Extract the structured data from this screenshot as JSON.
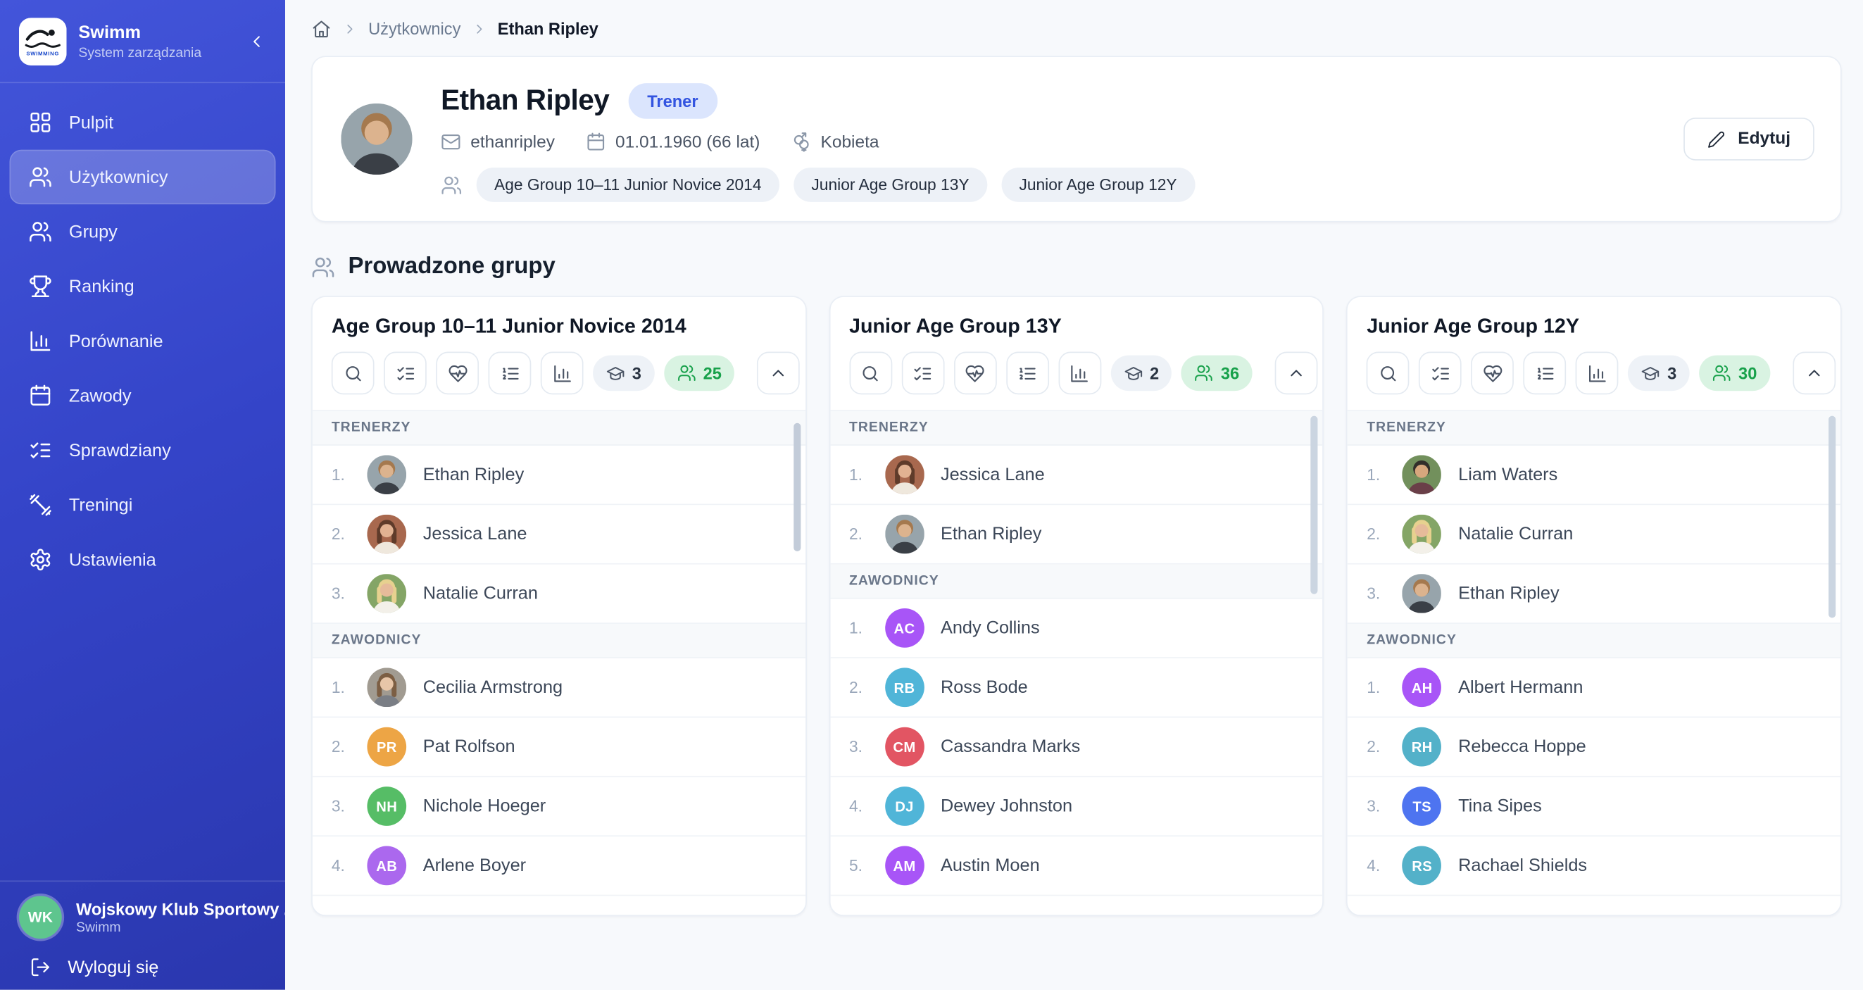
{
  "colors": {
    "sidebar_blue": "#3444c8",
    "active_nav_overlay": "rgba(255,255,255,0.22)",
    "role_badge_bg": "#dbe5fd",
    "role_badge_text": "#3354e0",
    "athletes_badge_bg": "#d9f3e2",
    "athletes_badge_text": "#18a14b",
    "club_avatar": "#5ec58e"
  },
  "sidebar": {
    "brand": {
      "title": "Swimm",
      "subtitle": "System zarządzania",
      "logo_icon": "swimmer-logo"
    },
    "nav": [
      {
        "label": "Pulpit",
        "icon": "dashboard",
        "active": false
      },
      {
        "label": "Użytkownicy",
        "icon": "users",
        "active": true
      },
      {
        "label": "Grupy",
        "icon": "users",
        "active": false
      },
      {
        "label": "Ranking",
        "icon": "trophy",
        "active": false
      },
      {
        "label": "Porównanie",
        "icon": "bar-chart",
        "active": false
      },
      {
        "label": "Zawody",
        "icon": "calendar",
        "active": false
      },
      {
        "label": "Sprawdziany",
        "icon": "list-checks",
        "active": false
      },
      {
        "label": "Treningi",
        "icon": "dumbbell",
        "active": false
      },
      {
        "label": "Ustawienia",
        "icon": "settings",
        "active": false
      }
    ],
    "club": {
      "initials": "WK",
      "name": "Wojskowy Klub Sportowy ...",
      "subtitle": "Swimm",
      "avatar_color": "#5ec58e"
    },
    "logout_label": "Wyloguj się"
  },
  "breadcrumb": {
    "items": [
      "Użytkownicy",
      "Ethan Ripley"
    ]
  },
  "profile": {
    "name": "Ethan Ripley",
    "role_badge": "Trener",
    "username": "ethanripley",
    "birth": "01.01.1960 (66 lat)",
    "gender": "Kobieta",
    "groups": [
      "Age Group 10–11 Junior Novice 2014",
      "Junior Age Group 13Y",
      "Junior Age Group 12Y"
    ],
    "edit_label": "Edytuj",
    "avatar": {
      "type": "photo",
      "variant": "man1"
    }
  },
  "section": {
    "title": "Prowadzone grupy"
  },
  "cards_toolbar": {
    "icons": [
      "search",
      "list-checks",
      "heart-pulse",
      "list-ordered",
      "bar-chart"
    ]
  },
  "cards": [
    {
      "title": "Age Group 10–11 Junior Novice 2014",
      "coaches_count": "3",
      "athletes_count": "25",
      "sections": [
        {
          "label": "TRENERZY",
          "members": [
            {
              "name": "Ethan Ripley",
              "avatar": {
                "type": "photo",
                "variant": "man1"
              }
            },
            {
              "name": "Jessica Lane",
              "avatar": {
                "type": "photo",
                "variant": "woman1"
              }
            },
            {
              "name": "Natalie Curran",
              "avatar": {
                "type": "photo",
                "variant": "woman2"
              }
            }
          ]
        },
        {
          "label": "ZAWODNICY",
          "members": [
            {
              "name": "Cecilia Armstrong",
              "avatar": {
                "type": "photo",
                "variant": "child1"
              }
            },
            {
              "name": "Pat Rolfson",
              "avatar": {
                "type": "initials",
                "text": "PR",
                "color": "#eda545"
              }
            },
            {
              "name": "Nichole Hoeger",
              "avatar": {
                "type": "initials",
                "text": "NH",
                "color": "#56bd66"
              }
            },
            {
              "name": "Arlene Boyer",
              "avatar": {
                "type": "initials",
                "text": "AB",
                "color": "#ab68ee"
              }
            }
          ]
        }
      ]
    },
    {
      "title": "Junior Age Group 13Y",
      "coaches_count": "2",
      "athletes_count": "36",
      "sections": [
        {
          "label": "TRENERZY",
          "members": [
            {
              "name": "Jessica Lane",
              "avatar": {
                "type": "photo",
                "variant": "woman1"
              }
            },
            {
              "name": "Ethan Ripley",
              "avatar": {
                "type": "photo",
                "variant": "man1"
              }
            }
          ]
        },
        {
          "label": "ZAWODNICY",
          "members": [
            {
              "name": "Andy Collins",
              "avatar": {
                "type": "initials",
                "text": "AC",
                "color": "#a855f7"
              }
            },
            {
              "name": "Ross Bode",
              "avatar": {
                "type": "initials",
                "text": "RB",
                "color": "#50b5d8"
              }
            },
            {
              "name": "Cassandra Marks",
              "avatar": {
                "type": "initials",
                "text": "CM",
                "color": "#e25563"
              }
            },
            {
              "name": "Dewey Johnston",
              "avatar": {
                "type": "initials",
                "text": "DJ",
                "color": "#50b5d8"
              }
            },
            {
              "name": "Austin Moen",
              "avatar": {
                "type": "initials",
                "text": "AM",
                "color": "#a855f7"
              }
            }
          ]
        }
      ]
    },
    {
      "title": "Junior Age Group 12Y",
      "coaches_count": "3",
      "athletes_count": "30",
      "sections": [
        {
          "label": "TRENERZY",
          "members": [
            {
              "name": "Liam Waters",
              "avatar": {
                "type": "photo",
                "variant": "man2"
              }
            },
            {
              "name": "Natalie Curran",
              "avatar": {
                "type": "photo",
                "variant": "woman2"
              }
            },
            {
              "name": "Ethan Ripley",
              "avatar": {
                "type": "photo",
                "variant": "man1"
              }
            }
          ]
        },
        {
          "label": "ZAWODNICY",
          "members": [
            {
              "name": "Albert Hermann",
              "avatar": {
                "type": "initials",
                "text": "AH",
                "color": "#a855f7"
              }
            },
            {
              "name": "Rebecca Hoppe",
              "avatar": {
                "type": "initials",
                "text": "RH",
                "color": "#53b1c9"
              }
            },
            {
              "name": "Tina Sipes",
              "avatar": {
                "type": "initials",
                "text": "TS",
                "color": "#4e74f0"
              }
            },
            {
              "name": "Rachael Shields",
              "avatar": {
                "type": "initials",
                "text": "RS",
                "color": "#53b1c9"
              }
            }
          ]
        }
      ]
    }
  ]
}
